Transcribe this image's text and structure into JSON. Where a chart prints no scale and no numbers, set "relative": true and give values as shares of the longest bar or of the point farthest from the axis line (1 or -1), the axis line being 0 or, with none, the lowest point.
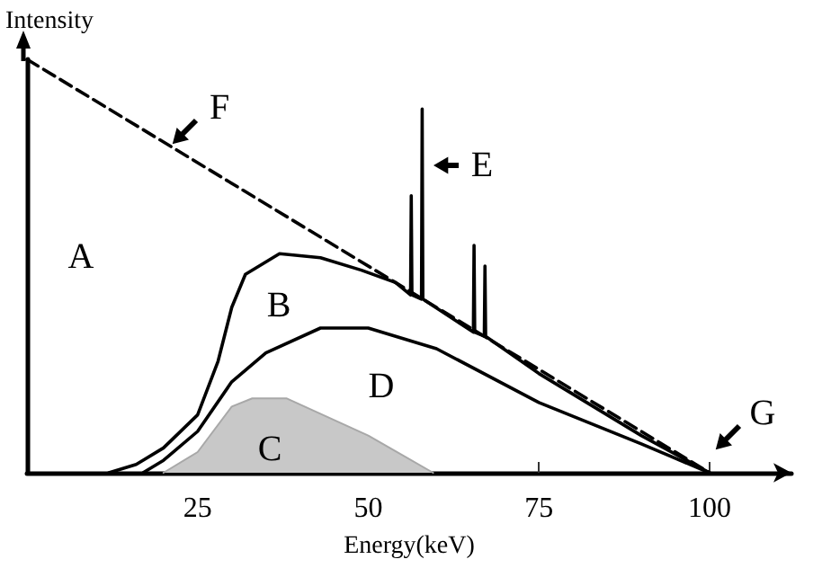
{
  "chart_data": {
    "type": "line",
    "relative": true,
    "xlabel": "Energy(keV)",
    "ylabel": "Intensity",
    "xlim": [
      0,
      112
    ],
    "xticks": [
      25,
      50,
      75,
      100
    ],
    "grid": false,
    "marker": "none",
    "series": [
      {
        "color": "#000000",
        "line_style": "dashed",
        "x": [
          0,
          54,
          100
        ],
        "values": [
          1,
          0.46,
          0
        ]
      },
      {
        "color": "#000000",
        "line_style": "solid",
        "x": [
          12,
          16,
          20,
          25,
          28,
          30,
          32,
          37,
          43,
          49,
          54,
          56.2,
          56.3,
          56.4,
          57.8,
          57.9,
          58,
          65.4,
          65.5,
          65.6,
          67,
          67.1,
          67.2,
          75,
          90,
          100
        ],
        "values": [
          0,
          0.02,
          0.06,
          0.14,
          0.27,
          0.4,
          0.48,
          0.53,
          0.52,
          0.49,
          0.46,
          0.43,
          0.67,
          0.43,
          0.42,
          0.88,
          0.42,
          0.34,
          0.55,
          0.34,
          0.33,
          0.5,
          0.33,
          0.24,
          0.09,
          0
        ]
      },
      {
        "color": "#000000",
        "line_style": "solid",
        "x": [
          17,
          20,
          25,
          30,
          35,
          43,
          50,
          60,
          75,
          90,
          100
        ],
        "values": [
          0,
          0.03,
          0.1,
          0.22,
          0.29,
          0.35,
          0.35,
          0.3,
          0.17,
          0.07,
          0
        ]
      },
      {
        "type": "area",
        "color": "#c8c8c8",
        "x": [
          20,
          25,
          30,
          33,
          38,
          50,
          59.5
        ],
        "values": [
          0,
          0.05,
          0.16,
          0.18,
          0.18,
          0.09,
          0
        ]
      }
    ],
    "annotations": [
      "A",
      "B",
      "C",
      "D",
      "E",
      "F",
      "G"
    ]
  }
}
